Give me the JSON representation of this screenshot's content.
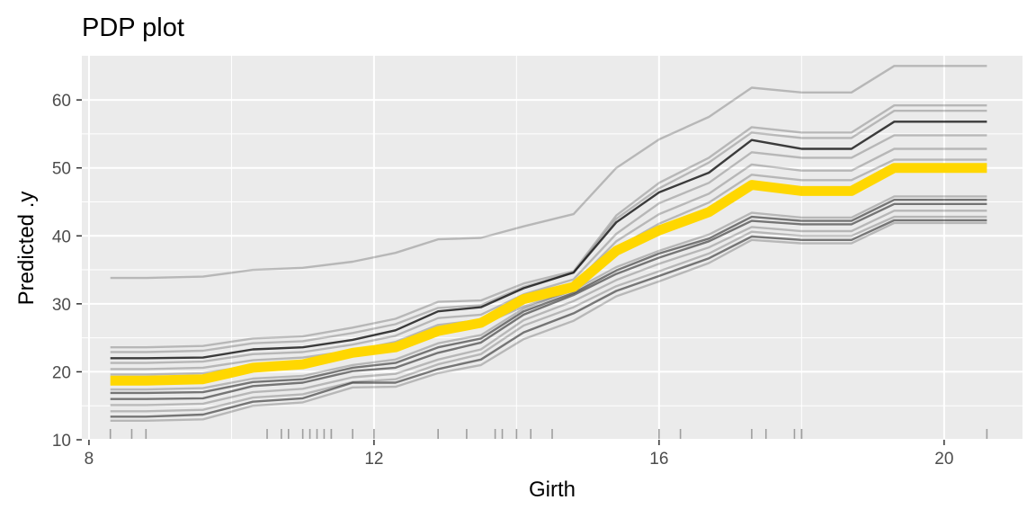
{
  "chart_data": {
    "type": "line",
    "title": "PDP plot",
    "xlabel": "Girth",
    "ylabel": "Predicted .y",
    "xlim": [
      7.9,
      21.1
    ],
    "ylim": [
      10,
      66.5
    ],
    "xticks": [
      8,
      12,
      16,
      20
    ],
    "yticks": [
      10,
      20,
      30,
      40,
      50,
      60
    ],
    "grid": true,
    "legend": "none",
    "colors": {
      "panel": "#ebebeb",
      "grid": "#ffffff",
      "ice": "#000000",
      "pdp": "#ffd700",
      "rug": "#9e9e9e"
    },
    "x": [
      8.3,
      8.8,
      9.6,
      10.3,
      11.0,
      11.7,
      12.3,
      12.9,
      13.5,
      14.1,
      14.8,
      15.4,
      16.0,
      16.7,
      17.3,
      18.0,
      18.7,
      19.3,
      20.6
    ],
    "pdp": [
      18.7,
      18.7,
      18.9,
      20.6,
      21.1,
      22.8,
      23.6,
      26.0,
      27.2,
      30.7,
      32.5,
      37.8,
      40.8,
      43.5,
      47.5,
      46.6,
      46.6,
      50.0,
      50.0
    ],
    "ice": [
      {
        "opacity": 0.22,
        "values": [
          33.8,
          33.8,
          34.0,
          35.0,
          35.3,
          36.2,
          37.5,
          39.5,
          39.7,
          41.4,
          43.2,
          50.0,
          54.2,
          57.5,
          61.8,
          61.1,
          61.1,
          65.0,
          65.0
        ]
      },
      {
        "opacity": 0.22,
        "values": [
          23.6,
          23.6,
          23.8,
          24.9,
          25.2,
          26.5,
          27.8,
          30.3,
          30.5,
          33.0,
          34.8,
          43.0,
          47.8,
          51.5,
          56.0,
          55.2,
          55.2,
          59.2,
          59.2
        ]
      },
      {
        "opacity": 0.22,
        "values": [
          22.9,
          22.9,
          23.1,
          24.2,
          24.5,
          25.7,
          27.0,
          29.4,
          29.8,
          32.5,
          34.6,
          42.5,
          47.0,
          50.8,
          55.2,
          54.4,
          54.4,
          58.4,
          58.4
        ]
      },
      {
        "opacity": 0.75,
        "values": [
          22.0,
          22.0,
          22.1,
          23.3,
          23.6,
          24.7,
          26.1,
          28.9,
          29.5,
          32.3,
          34.6,
          42.0,
          46.4,
          49.3,
          54.1,
          52.8,
          52.8,
          56.8,
          56.8
        ]
      },
      {
        "opacity": 0.22,
        "values": [
          21.3,
          21.3,
          21.5,
          22.6,
          22.9,
          24.0,
          25.3,
          27.9,
          28.4,
          31.4,
          33.6,
          40.3,
          44.8,
          47.8,
          52.3,
          51.5,
          51.5,
          54.8,
          54.8
        ]
      },
      {
        "opacity": 0.22,
        "values": [
          20.4,
          20.4,
          20.6,
          21.7,
          22.1,
          23.1,
          24.4,
          26.9,
          27.6,
          30.5,
          32.8,
          39.2,
          43.2,
          46.2,
          50.5,
          49.6,
          49.6,
          52.8,
          52.8
        ]
      },
      {
        "opacity": 0.22,
        "values": [
          19.6,
          19.6,
          19.8,
          20.9,
          21.3,
          22.3,
          23.4,
          26.1,
          26.9,
          29.6,
          32.0,
          38.2,
          41.8,
          44.9,
          49.0,
          48.2,
          48.2,
          51.2,
          51.2
        ]
      },
      {
        "opacity": 0.22,
        "values": [
          17.4,
          17.4,
          17.6,
          19.0,
          19.4,
          21.0,
          21.8,
          24.2,
          25.4,
          29.3,
          32.0,
          35.4,
          37.8,
          40.2,
          43.4,
          42.7,
          42.7,
          45.8,
          45.8
        ]
      },
      {
        "opacity": 0.5,
        "values": [
          16.9,
          16.9,
          17.0,
          18.5,
          18.9,
          20.6,
          21.3,
          23.6,
          24.9,
          28.9,
          31.6,
          34.9,
          37.4,
          39.6,
          42.8,
          42.2,
          42.2,
          45.3,
          45.3
        ]
      },
      {
        "opacity": 0.5,
        "values": [
          16.0,
          16.0,
          16.1,
          17.9,
          18.4,
          20.1,
          20.6,
          22.8,
          24.3,
          28.4,
          31.3,
          34.4,
          36.8,
          39.2,
          42.2,
          41.7,
          41.7,
          44.7,
          44.7
        ]
      },
      {
        "opacity": 0.22,
        "values": [
          15.1,
          15.1,
          15.3,
          17.0,
          17.5,
          19.2,
          19.7,
          21.8,
          23.3,
          27.6,
          30.4,
          33.5,
          35.9,
          38.3,
          41.3,
          40.7,
          40.7,
          43.7,
          43.7
        ]
      },
      {
        "opacity": 0.22,
        "values": [
          14.2,
          14.2,
          14.4,
          16.2,
          16.7,
          18.5,
          18.9,
          21.1,
          22.6,
          26.8,
          29.5,
          32.6,
          34.8,
          37.4,
          40.6,
          40.0,
          40.0,
          42.8,
          42.8
        ]
      },
      {
        "opacity": 0.5,
        "values": [
          13.4,
          13.4,
          13.7,
          15.6,
          16.1,
          18.4,
          18.4,
          20.4,
          21.8,
          25.8,
          28.6,
          31.9,
          34.1,
          36.7,
          39.9,
          39.4,
          39.4,
          42.3,
          42.3
        ]
      },
      {
        "opacity": 0.22,
        "values": [
          12.8,
          12.8,
          13.0,
          15.0,
          15.5,
          17.7,
          17.8,
          19.8,
          21.0,
          24.8,
          27.5,
          31.1,
          33.3,
          36.0,
          39.4,
          38.9,
          38.9,
          41.9,
          41.9
        ]
      }
    ],
    "rug": [
      8.3,
      8.6,
      8.8,
      10.5,
      10.7,
      10.8,
      11.0,
      11.1,
      11.2,
      11.3,
      11.4,
      11.4,
      11.7,
      12.0,
      12.9,
      12.9,
      13.3,
      13.7,
      13.8,
      14.0,
      14.2,
      14.5,
      16.0,
      16.3,
      17.3,
      17.5,
      17.9,
      18.0,
      18.0,
      20.6
    ]
  }
}
